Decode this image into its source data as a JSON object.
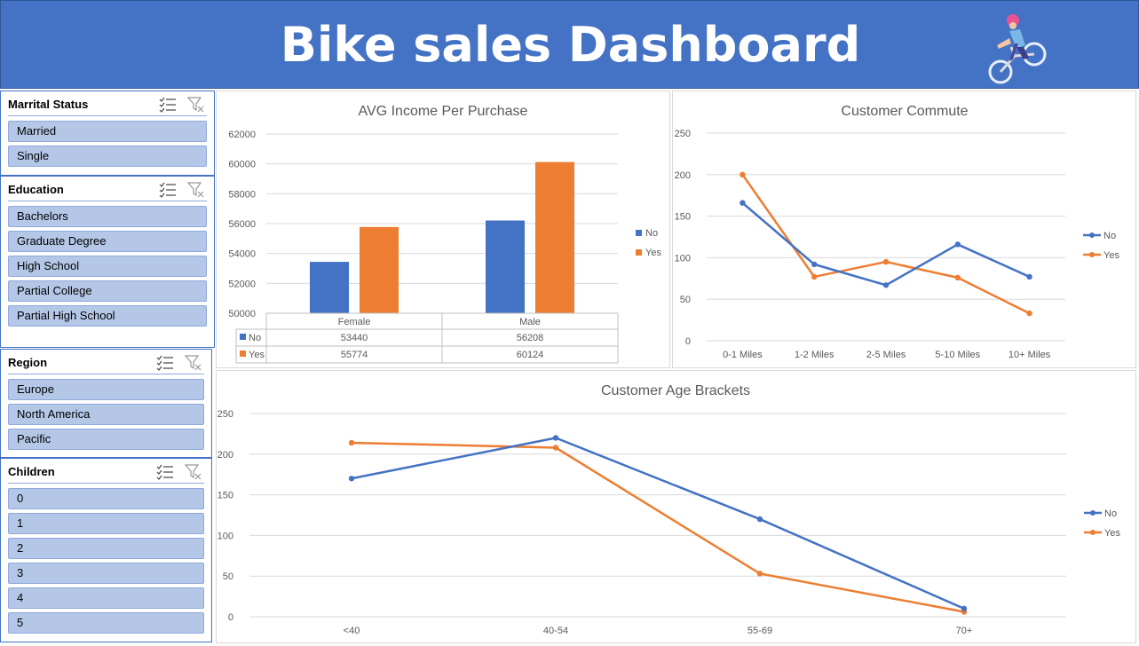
{
  "header": {
    "title": "Bike sales Dashboard",
    "logo_icon": "cyclist-icon"
  },
  "slicers": [
    {
      "id": "marital",
      "title": "Marrital Status",
      "items": [
        "Married",
        "Single"
      ]
    },
    {
      "id": "education",
      "title": "Education",
      "items": [
        "Bachelors",
        "Graduate Degree",
        "High School",
        "Partial College",
        "Partial High School"
      ]
    },
    {
      "id": "region",
      "title": "Region",
      "items": [
        "Europe",
        "North America",
        "Pacific"
      ]
    },
    {
      "id": "children",
      "title": "Children",
      "items": [
        "0",
        "1",
        "2",
        "3",
        "4",
        "5"
      ]
    }
  ],
  "colors": {
    "no": "#4472C4",
    "yes": "#ED7D31",
    "header": "#4472C4",
    "slicer_item": "#B4C7E7"
  },
  "chart_data": [
    {
      "type": "bar",
      "title": "AVG Income Per Purchase",
      "categories": [
        "Female",
        "Male"
      ],
      "series": [
        {
          "name": "No",
          "values": [
            53440,
            56208
          ]
        },
        {
          "name": "Yes",
          "values": [
            55774,
            60124
          ]
        }
      ],
      "ylim": [
        50000,
        62000
      ],
      "yticks": [
        "50000",
        "52000",
        "54000",
        "56000",
        "58000",
        "60000",
        "62000"
      ],
      "grid": true,
      "legend": "right",
      "data_table": true
    },
    {
      "type": "line",
      "title": "Customer Commute",
      "categories": [
        "0-1 Miles",
        "1-2 Miles",
        "2-5 Miles",
        "5-10 Miles",
        "10+ Miles"
      ],
      "series": [
        {
          "name": "No",
          "values": [
            166,
            92,
            67,
            116,
            77
          ]
        },
        {
          "name": "Yes",
          "values": [
            200,
            77,
            95,
            76,
            33
          ]
        }
      ],
      "ylim": [
        0,
        250
      ],
      "yticks": [
        "0",
        "50",
        "100",
        "150",
        "200",
        "250"
      ],
      "grid": true,
      "legend": "right"
    },
    {
      "type": "line",
      "title": "Customer Age Brackets",
      "categories": [
        "<40",
        "40-54",
        "55-69",
        "70+"
      ],
      "series": [
        {
          "name": "No",
          "values": [
            170,
            220,
            120,
            10
          ]
        },
        {
          "name": "Yes",
          "values": [
            214,
            208,
            53,
            6
          ]
        }
      ],
      "ylim": [
        0,
        250
      ],
      "yticks": [
        "0",
        "50",
        "100",
        "150",
        "200",
        "250"
      ],
      "grid": true,
      "legend": "right"
    }
  ]
}
